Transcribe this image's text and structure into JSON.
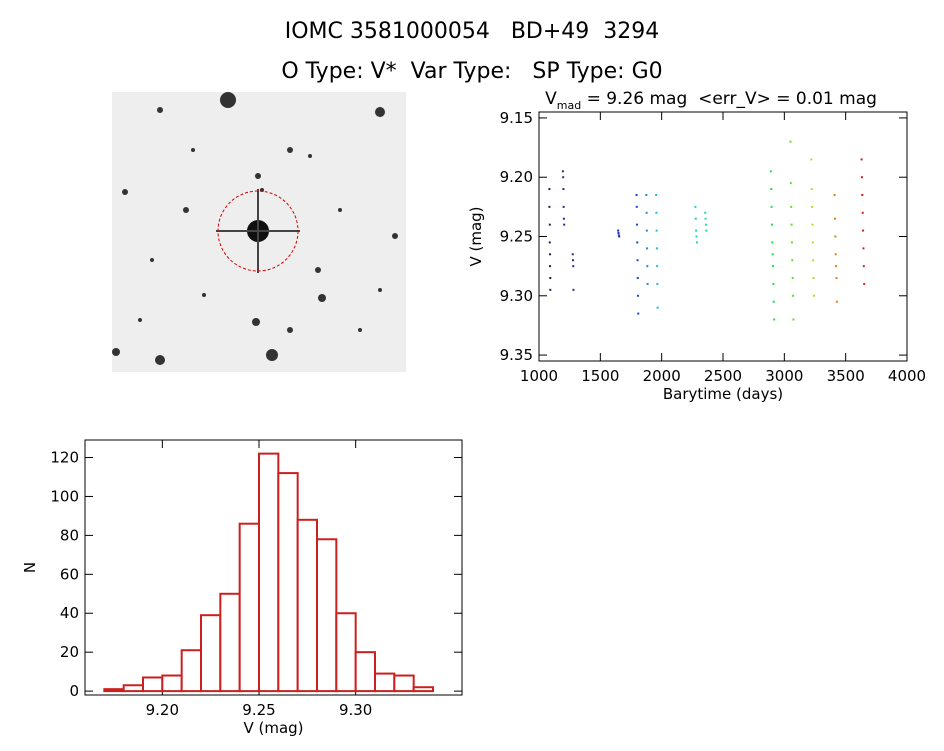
{
  "header": {
    "title": "IOMC 3581000054   BD+49  3294",
    "subtitle": "O Type: V*  Var Type:   SP Type: G0"
  },
  "chart_data": [
    {
      "type": "scatter",
      "title": "V",
      "title_subscript": "mad",
      "title_suffix": " = 9.26 mag  <err_V> = 0.01 mag",
      "x_label": "Barytime (days)",
      "y_label": "V (mag)",
      "xlim": [
        1000,
        4000
      ],
      "xticks": [
        1000,
        1500,
        2000,
        2500,
        3000,
        3500,
        4000
      ],
      "ylim": [
        9.145,
        9.355
      ],
      "y_inverted": true,
      "yticks": [
        9.15,
        {
          "value": 9.2,
          "label": "9.20"
        },
        9.25,
        {
          "value": 9.3,
          "label": "9.30"
        },
        9.35
      ],
      "series": [
        {
          "color": "#202050",
          "x": [
            1085,
            1085,
            1088,
            1088,
            1090,
            1090,
            1092,
            1092
          ],
          "values": [
            9.21,
            9.225,
            9.24,
            9.255,
            9.265,
            9.275,
            9.285,
            9.295
          ]
        },
        {
          "color": "#302890",
          "x": [
            1195,
            1197,
            1199,
            1201,
            1203,
            1205
          ],
          "values": [
            9.195,
            9.2,
            9.21,
            9.225,
            9.235,
            9.24
          ]
        },
        {
          "color": "#402090",
          "x": [
            1275,
            1277,
            1279,
            1281
          ],
          "values": [
            9.265,
            9.27,
            9.275,
            9.295
          ]
        },
        {
          "color": "#2030b0",
          "x": [
            1645,
            1648,
            1651,
            1654
          ],
          "values": [
            9.245,
            9.247,
            9.249,
            9.25
          ]
        },
        {
          "color": "#1050d0",
          "x": [
            1795,
            1797,
            1799,
            1801,
            1803,
            1805,
            1807,
            1809
          ],
          "values": [
            9.215,
            9.225,
            9.24,
            9.255,
            9.27,
            9.285,
            9.3,
            9.315
          ]
        },
        {
          "color": "#1090e0",
          "x": [
            1875,
            1877,
            1879,
            1881,
            1883,
            1885
          ],
          "values": [
            9.215,
            9.23,
            9.245,
            9.26,
            9.275,
            9.29
          ]
        },
        {
          "color": "#20b8e0",
          "x": [
            1955,
            1957,
            1959,
            1961,
            1963,
            1965,
            1967
          ],
          "values": [
            9.215,
            9.23,
            9.245,
            9.26,
            9.275,
            9.29,
            9.31
          ]
        },
        {
          "color": "#20d0c0",
          "x": [
            2275,
            2278,
            2281,
            2284,
            2287
          ],
          "values": [
            9.225,
            9.235,
            9.245,
            9.25,
            9.255
          ]
        },
        {
          "color": "#20e0a8",
          "x": [
            2355,
            2358,
            2361,
            2364
          ],
          "values": [
            9.23,
            9.235,
            9.24,
            9.245
          ]
        },
        {
          "color": "#20e040",
          "x": [
            2890,
            2893,
            2896,
            2899,
            2902,
            2905,
            2908,
            2911,
            2914,
            2917
          ],
          "values": [
            9.195,
            9.21,
            9.225,
            9.24,
            9.255,
            9.265,
            9.275,
            9.29,
            9.305,
            9.32
          ]
        },
        {
          "color": "#60e020",
          "x": [
            3050,
            3053,
            3056,
            3059,
            3062,
            3065,
            3068,
            3071,
            3074
          ],
          "values": [
            9.17,
            9.205,
            9.225,
            9.24,
            9.255,
            9.27,
            9.285,
            9.3,
            9.32
          ]
        },
        {
          "color": "#b0e020",
          "x": [
            3220,
            3223,
            3226,
            3229,
            3232,
            3235,
            3238,
            3241
          ],
          "values": [
            9.185,
            9.21,
            9.225,
            9.24,
            9.255,
            9.27,
            9.285,
            9.3
          ]
        },
        {
          "color": "#e08010",
          "x": [
            3410,
            3413,
            3416,
            3419,
            3422,
            3425,
            3428
          ],
          "values": [
            9.215,
            9.235,
            9.25,
            9.265,
            9.275,
            9.285,
            9.305
          ]
        },
        {
          "color": "#d02020",
          "x": [
            3630,
            3633,
            3636,
            3639,
            3642,
            3645,
            3648,
            3651
          ],
          "values": [
            9.185,
            9.2,
            9.215,
            9.23,
            9.245,
            9.26,
            9.275,
            9.29
          ]
        }
      ]
    },
    {
      "type": "histogram",
      "x_label": "V (mag)",
      "y_label": "N",
      "color": "#cc2020",
      "bins": [
        9.17,
        9.18,
        9.19,
        9.2,
        9.21,
        9.22,
        9.23,
        9.24,
        9.25,
        9.26,
        9.27,
        9.28,
        9.29,
        9.3,
        9.31,
        9.32,
        9.33,
        9.34
      ],
      "values": [
        1,
        3,
        7,
        8,
        21,
        39,
        50,
        86,
        122,
        112,
        88,
        78,
        40,
        20,
        9,
        8,
        2
      ],
      "xlim": [
        9.16,
        9.355
      ],
      "xticks": [
        {
          "value": 9.2,
          "label": "9.20"
        },
        9.25,
        {
          "value": 9.3,
          "label": "9.30"
        }
      ],
      "ylim": [
        -2,
        129
      ],
      "yticks": [
        0,
        20,
        40,
        60,
        80,
        100,
        120
      ]
    }
  ]
}
